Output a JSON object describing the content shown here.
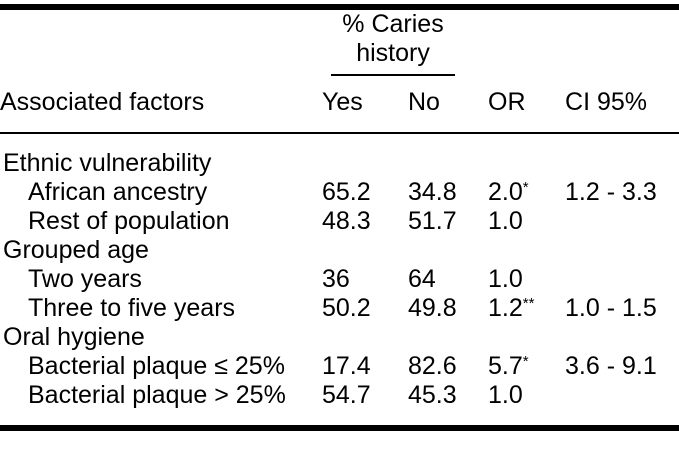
{
  "colors": {
    "text": "#000000",
    "background": "#ffffff",
    "rule": "#000000"
  },
  "table": {
    "spanner": {
      "line1": "% Caries",
      "line2": "history"
    },
    "columns": {
      "factor": "Associated factors",
      "yes": "Yes",
      "no": "No",
      "or": "OR",
      "ci": "CI 95%"
    },
    "rows": [
      {
        "type": "category",
        "factor": "Ethnic vulnerability",
        "yes": "",
        "no": "",
        "or": "",
        "or_sup": "",
        "ci": ""
      },
      {
        "type": "item",
        "factor": "African ancestry",
        "yes": "65.2",
        "no": "34.8",
        "or": "2.0",
        "or_sup": "*",
        "ci": "1.2 - 3.3"
      },
      {
        "type": "item",
        "factor": "Rest of population",
        "yes": "48.3",
        "no": "51.7",
        "or": "1.0",
        "or_sup": "",
        "ci": ""
      },
      {
        "type": "category",
        "factor": "Grouped age",
        "yes": "",
        "no": "",
        "or": "",
        "or_sup": "",
        "ci": ""
      },
      {
        "type": "item",
        "factor": "Two years",
        "yes": "36",
        "no": "64",
        "or": "1.0",
        "or_sup": "",
        "ci": ""
      },
      {
        "type": "item",
        "factor": "Three to five years",
        "yes": "50.2",
        "no": "49.8",
        "or": "1.2",
        "or_sup": "**",
        "ci": "1.0 - 1.5"
      },
      {
        "type": "category",
        "factor": "Oral hygiene",
        "yes": "",
        "no": "",
        "or": "",
        "or_sup": "",
        "ci": ""
      },
      {
        "type": "item",
        "factor": "Bacterial plaque ≤ 25%",
        "yes": "17.4",
        "no": "82.6",
        "or": "5.7",
        "or_sup": "*",
        "ci": "3.6 - 9.1"
      },
      {
        "type": "item",
        "factor": "Bacterial plaque > 25%",
        "yes": "54.7",
        "no": "45.3",
        "or": "1.0",
        "or_sup": "",
        "ci": ""
      }
    ]
  }
}
